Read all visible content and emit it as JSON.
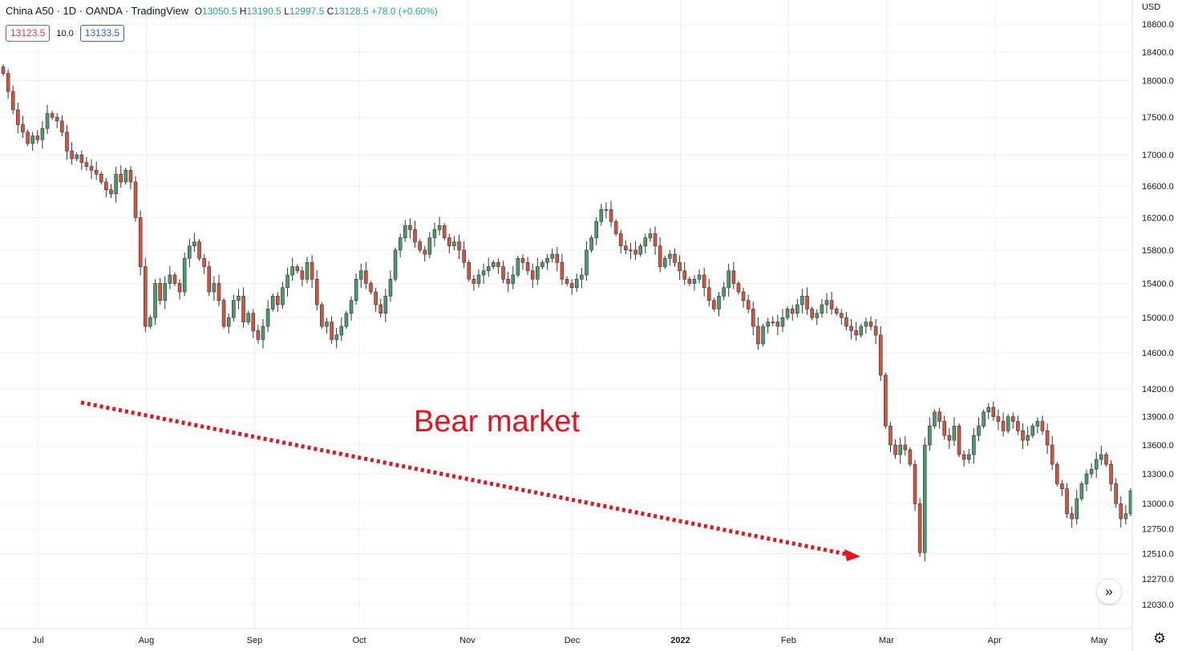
{
  "header": {
    "symbol": "China A50 · 1D · OANDA · TradingView",
    "open_label": "O",
    "open": "13050.5",
    "high_label": "H",
    "high": "13190.5",
    "low_label": "L",
    "low": "12997.5",
    "close_label": "C",
    "close": "13128.5",
    "change": "+78.0 (+0.60%)"
  },
  "trade": {
    "sell_price": "13123.5",
    "spread": "10.0",
    "buy_price": "13133.5"
  },
  "currency": "USD",
  "annotation": "Bear market",
  "colors": {
    "up": "#4a9a6b",
    "down": "#d4543d",
    "grid": "#eef0f3",
    "arrow": "#e8121c"
  },
  "icons": {
    "scroll": "double-chevron-right-icon",
    "settings": "gear-icon"
  },
  "chart_data": {
    "type": "candlestick",
    "title": "China A50 · 1D · OANDA",
    "ylim": [
      11900,
      18900
    ],
    "y_scale": "log",
    "y_ticks": [
      18800,
      18400,
      18000,
      17500,
      17000,
      16600,
      16200,
      15800,
      15400,
      15000,
      14600,
      14200,
      13900,
      13600,
      13300,
      13000,
      12750,
      12510,
      12270,
      12030
    ],
    "y_tick_labels": [
      "18800.0",
      "18400.0",
      "18000.0",
      "17500.0",
      "17000.0",
      "16600.0",
      "16200.0",
      "15800.0",
      "15400.0",
      "15000.0",
      "14600.0",
      "14200.0",
      "13900.0",
      "13600.0",
      "13300.0",
      "13000.0",
      "12750.0",
      "12510.0",
      "12270.0",
      "12030.0"
    ],
    "x_ticks": [
      {
        "label": "Jul",
        "date": "2021-07-01"
      },
      {
        "label": "Aug",
        "date": "2021-08-01"
      },
      {
        "label": "Sep",
        "date": "2021-09-01"
      },
      {
        "label": "Oct",
        "date": "2021-10-01"
      },
      {
        "label": "Nov",
        "date": "2021-11-01"
      },
      {
        "label": "Dec",
        "date": "2021-12-01"
      },
      {
        "label": "2022",
        "date": "2022-01-01"
      },
      {
        "label": "Feb",
        "date": "2022-02-01"
      },
      {
        "label": "Mar",
        "date": "2022-03-01"
      },
      {
        "label": "Apr",
        "date": "2022-04-01"
      },
      {
        "label": "May",
        "date": "2022-05-01"
      }
    ],
    "grid": true,
    "closes": [
      18100,
      17850,
      17600,
      17400,
      17300,
      17150,
      17250,
      17200,
      17350,
      17550,
      17500,
      17450,
      17300,
      17050,
      16950,
      17000,
      16900,
      16850,
      16800,
      16750,
      16650,
      16550,
      16500,
      16750,
      16650,
      16800,
      16650,
      16200,
      15600,
      14900,
      15000,
      15400,
      15200,
      15400,
      15500,
      15400,
      15300,
      15700,
      15850,
      15900,
      15700,
      15600,
      15300,
      15400,
      15200,
      14900,
      15000,
      15200,
      15250,
      14950,
      15050,
      14850,
      14750,
      14900,
      15100,
      15250,
      15150,
      15350,
      15500,
      15600,
      15550,
      15450,
      15650,
      15450,
      15150,
      14900,
      14950,
      14750,
      14800,
      14900,
      15050,
      15200,
      15450,
      15550,
      15400,
      15300,
      15150,
      15050,
      15250,
      15450,
      15800,
      15950,
      16100,
      16050,
      15900,
      15800,
      15750,
      15950,
      16050,
      16100,
      15950,
      15850,
      15900,
      15800,
      15650,
      15450,
      15400,
      15500,
      15550,
      15600,
      15650,
      15600,
      15450,
      15400,
      15500,
      15700,
      15650,
      15550,
      15450,
      15600,
      15650,
      15700,
      15750,
      15650,
      15450,
      15400,
      15350,
      15450,
      15500,
      15800,
      15950,
      16150,
      16300,
      16300,
      16150,
      16000,
      15850,
      15800,
      15800,
      15750,
      15850,
      15950,
      16000,
      15850,
      15600,
      15700,
      15750,
      15650,
      15550,
      15450,
      15400,
      15450,
      15500,
      15350,
      15200,
      15100,
      15250,
      15350,
      15550,
      15400,
      15300,
      15200,
      15100,
      14900,
      14700,
      14900,
      14950,
      14950,
      14900,
      15000,
      15100,
      15050,
      15150,
      15250,
      15100,
      15000,
      15050,
      15150,
      15200,
      15100,
      15050,
      15000,
      14900,
      14850,
      14800,
      14900,
      14950,
      14900,
      14800,
      14350,
      13800,
      13600,
      13500,
      13600,
      13550,
      13400,
      13000,
      12520,
      13600,
      13800,
      13950,
      13850,
      13700,
      13650,
      13800,
      13500,
      13450,
      13500,
      13700,
      13800,
      13950,
      14000,
      13900,
      13850,
      13750,
      13900,
      13850,
      13750,
      13650,
      13700,
      13800,
      13850,
      13750,
      13600,
      13400,
      13200,
      13150,
      12900,
      12850,
      13050,
      13200,
      13300,
      13350,
      13450,
      13500,
      13400,
      13200,
      13000,
      12850,
      12900,
      13128.5
    ]
  }
}
